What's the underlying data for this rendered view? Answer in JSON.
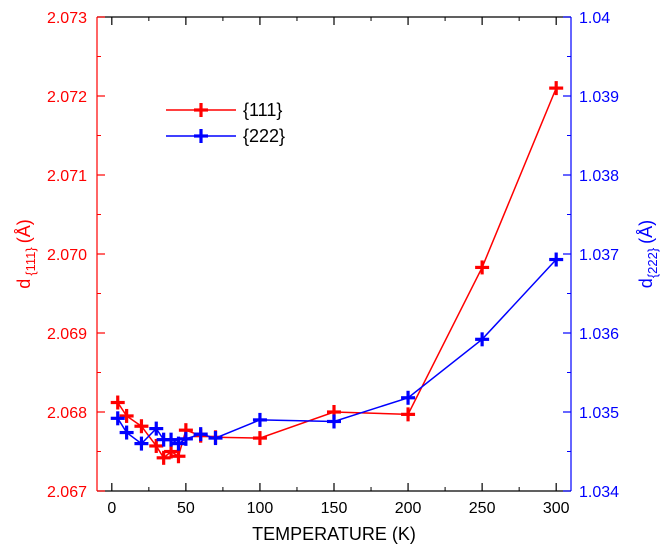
{
  "chart_data": {
    "type": "line",
    "xlabel": "TEMPERATURE (K)",
    "ylabel_left": {
      "base": "d",
      "sub": "{111}",
      "unit": "(Å)"
    },
    "ylabel_right": {
      "base": "d",
      "sub": "{222}",
      "unit": "(Å)"
    },
    "xlim": [
      -10,
      310
    ],
    "ylim_left": [
      2.067,
      2.073
    ],
    "ylim_right": [
      1.034,
      1.04
    ],
    "x_ticks": [
      "0",
      "50",
      "100",
      "150",
      "200",
      "250",
      "300"
    ],
    "y_ticks_left": [
      "2.067",
      "2.068",
      "2.069",
      "2.070",
      "2.071",
      "2.072",
      "2.073"
    ],
    "y_ticks_right": [
      "1.034",
      "1.035",
      "1.036",
      "1.037",
      "1.038",
      "1.039",
      "1.04"
    ],
    "legend_position": "top-left",
    "series": [
      {
        "name": "{111}",
        "axis": "left",
        "color": "#ff0000",
        "marker": "plus",
        "x": [
          4,
          10,
          20,
          30,
          35,
          40,
          45,
          50,
          60,
          70,
          100,
          150,
          200,
          250,
          300
        ],
        "y": [
          2.06812,
          2.06795,
          2.06782,
          2.06757,
          2.06742,
          2.0675,
          2.06744,
          2.06777,
          2.0677,
          2.06768,
          2.06767,
          2.068,
          2.06797,
          2.06983,
          2.0721
        ]
      },
      {
        "name": "{222}",
        "axis": "right",
        "color": "#0000ff",
        "marker": "plus",
        "x": [
          4,
          10,
          20,
          30,
          35,
          40,
          45,
          50,
          60,
          70,
          100,
          150,
          200,
          250,
          300
        ],
        "y": [
          1.03492,
          1.03474,
          1.0346,
          1.03479,
          1.03465,
          1.03465,
          1.0346,
          1.03466,
          1.03472,
          1.03467,
          1.0349,
          1.03488,
          1.03518,
          1.03592,
          1.03693
        ]
      }
    ]
  },
  "colors": {
    "left_axis": "#ff0000",
    "right_axis": "#0000ff",
    "bottom_axis": "#000000"
  }
}
